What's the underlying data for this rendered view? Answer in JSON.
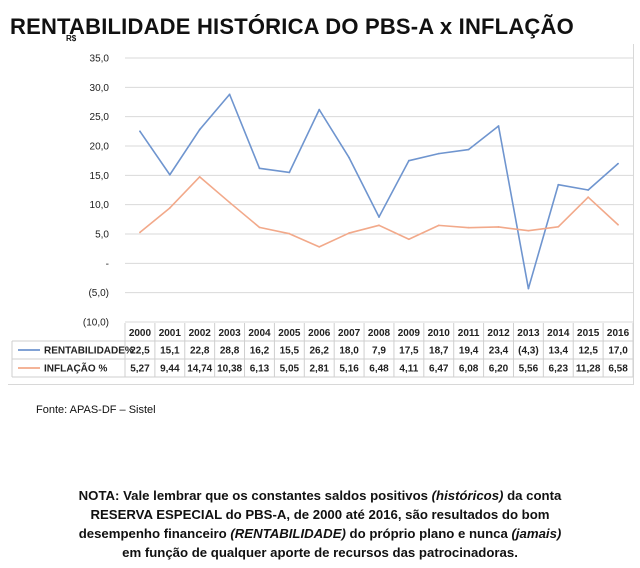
{
  "header": {
    "title": "RENTABILIDADE HISTÓRICA DO PBS-A  x  INFLAÇÃO",
    "unit": "R$"
  },
  "chart_data": {
    "type": "line",
    "title": "RENTABILIDADE HISTÓRICA DO PBS-A  x  INFLAÇÃO",
    "categories": [
      "2000",
      "2001",
      "2002",
      "2003",
      "2004",
      "2005",
      "2006",
      "2007",
      "2008",
      "2009",
      "2010",
      "2011",
      "2012",
      "2013",
      "2014",
      "2015",
      "2016"
    ],
    "ylim": [
      -10,
      35
    ],
    "yticks": [
      35,
      30,
      25,
      20,
      15,
      10,
      5,
      0,
      -5,
      -10
    ],
    "ytick_labels": [
      "35,0",
      "30,0",
      "25,0",
      "20,0",
      "15,0",
      "10,0",
      "5,0",
      "-",
      "(5,0)",
      "(10,0)"
    ],
    "grid": true,
    "series": [
      {
        "name": "RENTABILIDADE%",
        "color": "#6f95cf",
        "values": [
          22.5,
          15.1,
          22.8,
          28.8,
          16.2,
          15.5,
          26.2,
          18.0,
          7.9,
          17.5,
          18.7,
          19.4,
          23.4,
          -4.3,
          13.4,
          12.5,
          17.0
        ],
        "labels": [
          "22,5",
          "15,1",
          "22,8",
          "28,8",
          "16,2",
          "15,5",
          "26,2",
          "18,0",
          "7,9",
          "17,5",
          "18,7",
          "19,4",
          "23,4",
          "(4,3)",
          "13,4",
          "12,5",
          "17,0"
        ]
      },
      {
        "name": "INFLAÇÃO %",
        "color": "#f2a98a",
        "values": [
          5.27,
          9.44,
          14.74,
          10.38,
          6.13,
          5.05,
          2.81,
          5.16,
          6.48,
          4.11,
          6.47,
          6.08,
          6.2,
          5.56,
          6.23,
          11.28,
          6.58
        ],
        "labels": [
          "5,27",
          "9,44",
          "14,74",
          "10,38",
          "6,13",
          "5,05",
          "2,81",
          "5,16",
          "6,48",
          "4,11",
          "6,47",
          "6,08",
          "6,20",
          "5,56",
          "6,23",
          "11,28",
          "6,58"
        ]
      }
    ]
  },
  "footer": {
    "source": "Fonte:  APAS-DF – Sistel",
    "note": {
      "l1a": "NOTA:  Vale lembrar que os constantes saldos positivos ",
      "l1b": "(históricos)",
      "l1c": " da conta",
      "l2": "RESERVA ESPECIAL do PBS-A, de 2000 até 2016, são resultados do bom",
      "l3a": "desempenho financeiro ",
      "l3b": "(RENTABILIDADE)",
      "l3c": " do próprio plano e nunca ",
      "l3d": "(jamais)",
      "l4": "em função de qualquer aporte de recursos das patrocinadoras."
    }
  }
}
